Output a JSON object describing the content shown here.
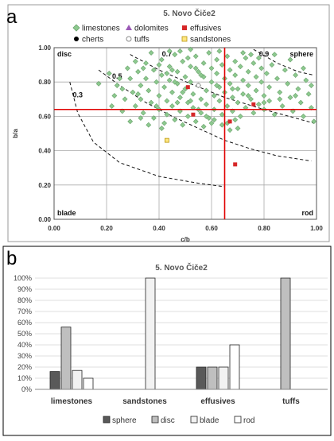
{
  "panel_labels": {
    "a": "a",
    "b": "b"
  },
  "chart_data": [
    {
      "type": "scatter",
      "title": "5. Novo Čiče2",
      "xlabel": "c/b",
      "ylabel": "b/a",
      "xlim": [
        0,
        1
      ],
      "ylim": [
        0,
        1
      ],
      "x_ticks": [
        "0.00",
        "0.20",
        "0.40",
        "0.60",
        "0.80",
        "1.00"
      ],
      "y_ticks": [
        "0.00",
        "0.20",
        "0.40",
        "0.60",
        "0.80",
        "1.00"
      ],
      "grid": true,
      "legend_placement": "top",
      "region_labels": {
        "disc": "disc",
        "sphere": "sphere",
        "blade": "blade",
        "rod": "rod"
      },
      "curve_labels": [
        "0.3",
        "0.5",
        "0.7",
        "0.9"
      ],
      "reference_lines": {
        "x": 0.65,
        "y": 0.64
      },
      "colors": {
        "limestones": "#8dc98f",
        "dolomites": "#9b59b6",
        "effusives": "#d62728",
        "cherts": "#000000",
        "tuffs": "#c8c8c8",
        "sandstones": "#f2d30c",
        "reference": "#e00000"
      },
      "legend": [
        {
          "name": "limestones",
          "marker": "diamond"
        },
        {
          "name": "dolomites",
          "marker": "triangle"
        },
        {
          "name": "effusives",
          "marker": "square"
        },
        {
          "name": "cherts",
          "marker": "circle"
        },
        {
          "name": "tuffs",
          "marker": "circle-open"
        },
        {
          "name": "sandstones",
          "marker": "square-open"
        }
      ],
      "series": [
        {
          "name": "limestones",
          "points": [
            [
              0.17,
              0.79
            ],
            [
              0.21,
              0.85
            ],
            [
              0.24,
              0.78
            ],
            [
              0.25,
              0.82
            ],
            [
              0.26,
              0.76
            ],
            [
              0.27,
              0.7
            ],
            [
              0.28,
              0.88
            ],
            [
              0.29,
              0.82
            ],
            [
              0.3,
              0.74
            ],
            [
              0.31,
              0.66
            ],
            [
              0.32,
              0.86
            ],
            [
              0.33,
              0.78
            ],
            [
              0.33,
              0.7
            ],
            [
              0.34,
              0.62
            ],
            [
              0.35,
              0.91
            ],
            [
              0.35,
              0.82
            ],
            [
              0.36,
              0.75
            ],
            [
              0.37,
              0.68
            ],
            [
              0.38,
              0.87
            ],
            [
              0.38,
              0.59
            ],
            [
              0.39,
              0.8
            ],
            [
              0.4,
              0.72
            ],
            [
              0.4,
              0.64
            ],
            [
              0.41,
              0.93
            ],
            [
              0.41,
              0.84
            ],
            [
              0.42,
              0.77
            ],
            [
              0.43,
              0.69
            ],
            [
              0.43,
              0.61
            ],
            [
              0.44,
              0.89
            ],
            [
              0.44,
              0.81
            ],
            [
              0.45,
              0.74
            ],
            [
              0.45,
              0.66
            ],
            [
              0.46,
              0.96
            ],
            [
              0.46,
              0.58
            ],
            [
              0.47,
              0.86
            ],
            [
              0.47,
              0.79
            ],
            [
              0.48,
              0.71
            ],
            [
              0.48,
              0.63
            ],
            [
              0.49,
              0.92
            ],
            [
              0.49,
              0.55
            ],
            [
              0.5,
              0.83
            ],
            [
              0.5,
              0.76
            ],
            [
              0.51,
              0.68
            ],
            [
              0.51,
              0.6
            ],
            [
              0.52,
              0.89
            ],
            [
              0.52,
              0.8
            ],
            [
              0.53,
              0.73
            ],
            [
              0.53,
              0.65
            ],
            [
              0.54,
              0.95
            ],
            [
              0.54,
              0.57
            ],
            [
              0.55,
              0.86
            ],
            [
              0.55,
              0.78
            ],
            [
              0.56,
              0.7
            ],
            [
              0.56,
              0.62
            ],
            [
              0.57,
              0.91
            ],
            [
              0.57,
              0.83
            ],
            [
              0.58,
              0.75
            ],
            [
              0.58,
              0.67
            ],
            [
              0.59,
              0.97
            ],
            [
              0.59,
              0.59
            ],
            [
              0.6,
              0.88
            ],
            [
              0.6,
              0.8
            ],
            [
              0.61,
              0.72
            ],
            [
              0.61,
              0.64
            ],
            [
              0.62,
              0.93
            ],
            [
              0.62,
              0.85
            ],
            [
              0.63,
              0.77
            ],
            [
              0.63,
              0.69
            ],
            [
              0.64,
              0.9
            ],
            [
              0.64,
              0.61
            ],
            [
              0.65,
              0.82
            ],
            [
              0.65,
              0.74
            ],
            [
              0.66,
              0.95
            ],
            [
              0.66,
              0.66
            ],
            [
              0.67,
              0.87
            ],
            [
              0.67,
              0.79
            ],
            [
              0.68,
              0.71
            ],
            [
              0.68,
              0.63
            ],
            [
              0.69,
              0.92
            ],
            [
              0.69,
              0.84
            ],
            [
              0.7,
              0.76
            ],
            [
              0.7,
              0.68
            ],
            [
              0.71,
              0.89
            ],
            [
              0.71,
              0.6
            ],
            [
              0.72,
              0.81
            ],
            [
              0.72,
              0.73
            ],
            [
              0.73,
              0.94
            ],
            [
              0.73,
              0.65
            ],
            [
              0.74,
              0.86
            ],
            [
              0.74,
              0.78
            ],
            [
              0.75,
              0.7
            ],
            [
              0.76,
              0.91
            ],
            [
              0.76,
              0.62
            ],
            [
              0.77,
              0.83
            ],
            [
              0.77,
              0.75
            ],
            [
              0.78,
              0.67
            ],
            [
              0.79,
              0.88
            ],
            [
              0.79,
              0.8
            ],
            [
              0.8,
              0.72
            ],
            [
              0.8,
              0.64
            ],
            [
              0.81,
              0.85
            ],
            [
              0.82,
              0.77
            ],
            [
              0.82,
              0.69
            ],
            [
              0.83,
              0.9
            ],
            [
              0.84,
              0.61
            ],
            [
              0.85,
              0.82
            ],
            [
              0.86,
              0.74
            ],
            [
              0.87,
              0.66
            ],
            [
              0.88,
              0.87
            ],
            [
              0.89,
              0.79
            ],
            [
              0.9,
              0.71
            ],
            [
              0.91,
              0.63
            ],
            [
              0.92,
              0.84
            ],
            [
              0.93,
              0.76
            ],
            [
              0.94,
              0.68
            ],
            [
              0.95,
              0.6
            ],
            [
              0.96,
              0.81
            ],
            [
              0.97,
              0.73
            ],
            [
              0.98,
              0.65
            ],
            [
              0.99,
              0.57
            ],
            [
              0.26,
              0.63
            ],
            [
              0.29,
              0.57
            ],
            [
              0.32,
              0.73
            ],
            [
              0.36,
              0.55
            ],
            [
              0.39,
              0.66
            ],
            [
              0.42,
              0.56
            ],
            [
              0.45,
              0.87
            ],
            [
              0.48,
              0.98
            ],
            [
              0.51,
              0.94
            ],
            [
              0.54,
              0.88
            ],
            [
              0.57,
              0.54
            ],
            [
              0.6,
              0.56
            ],
            [
              0.63,
              0.98
            ],
            [
              0.66,
              0.56
            ],
            [
              0.69,
              0.58
            ],
            [
              0.72,
              0.97
            ],
            [
              0.75,
              0.96
            ],
            [
              0.78,
              0.94
            ],
            [
              0.52,
              0.99
            ],
            [
              0.44,
              0.98
            ],
            [
              0.37,
              0.97
            ],
            [
              0.4,
              0.9
            ],
            [
              0.43,
              0.85
            ],
            [
              0.46,
              0.8
            ],
            [
              0.49,
              0.74
            ],
            [
              0.52,
              0.69
            ],
            [
              0.55,
              0.64
            ],
            [
              0.58,
              0.6
            ],
            [
              0.61,
              0.58
            ],
            [
              0.64,
              0.55
            ],
            [
              0.67,
              0.52
            ],
            [
              0.7,
              0.53
            ],
            [
              0.31,
              0.92
            ],
            [
              0.34,
              0.88
            ],
            [
              0.23,
              0.72
            ],
            [
              0.22,
              0.66
            ],
            [
              0.47,
              0.68
            ],
            [
              0.56,
              0.84
            ],
            [
              0.62,
              0.78
            ],
            [
              0.68,
              0.76
            ],
            [
              0.74,
              0.72
            ],
            [
              0.8,
              0.68
            ],
            [
              0.86,
              0.7
            ],
            [
              0.92,
              0.72
            ],
            [
              0.98,
              0.78
            ],
            [
              0.95,
              0.88
            ],
            [
              0.9,
              0.93
            ],
            [
              0.84,
              0.96
            ],
            [
              0.33,
              0.59
            ],
            [
              0.41,
              0.53
            ]
          ]
        },
        {
          "name": "dolomites",
          "points": []
        },
        {
          "name": "effusives",
          "points": [
            [
              0.51,
              0.77
            ],
            [
              0.53,
              0.61
            ],
            [
              0.67,
              0.57
            ],
            [
              0.69,
              0.32
            ],
            [
              0.76,
              0.67
            ]
          ]
        },
        {
          "name": "cherts",
          "points": []
        },
        {
          "name": "tuffs",
          "points": [
            [
              0.55,
              0.78
            ]
          ]
        },
        {
          "name": "sandstones",
          "points": [
            [
              0.43,
              0.46
            ]
          ]
        }
      ]
    },
    {
      "type": "bar",
      "title": "5. Novo Čiče2",
      "categories": [
        "limestones",
        "sandstones",
        "effusives",
        "tuffs"
      ],
      "ylim": [
        0,
        100
      ],
      "y_ticks": [
        "0%",
        "10%",
        "20%",
        "30%",
        "40%",
        "50%",
        "60%",
        "70%",
        "80%",
        "90%",
        "100%"
      ],
      "grid": true,
      "legend_placement": "bottom",
      "colors": {
        "sphere": "#595959",
        "disc": "#bfbfbf",
        "blade": "#f2f2f2",
        "rod": "#ffffff"
      },
      "series": [
        {
          "name": "sphere",
          "values": [
            16,
            0,
            20,
            0
          ]
        },
        {
          "name": "disc",
          "values": [
            56,
            0,
            20,
            100
          ]
        },
        {
          "name": "blade",
          "values": [
            17,
            100,
            20,
            0
          ]
        },
        {
          "name": "rod",
          "values": [
            10,
            0,
            40,
            0
          ]
        }
      ]
    }
  ]
}
